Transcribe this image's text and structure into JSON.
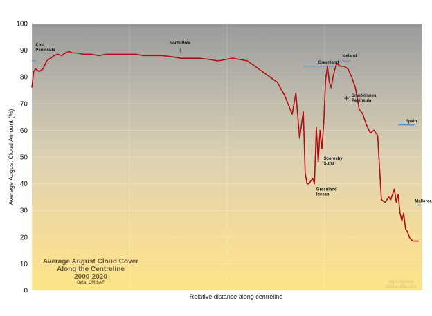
{
  "chart_data": {
    "type": "line",
    "ylabel": "Average August Cloud Amount (%)",
    "xlabel": "Relative distance along centreline",
    "ylim": [
      0,
      100
    ],
    "yticks": [
      0,
      10,
      20,
      30,
      40,
      50,
      60,
      70,
      80,
      90,
      100
    ],
    "xlim": [
      0,
      1.05
    ],
    "grid": true,
    "inset_title": [
      "Average August Cloud Cover",
      "Along the Centreline",
      "2000-2020"
    ],
    "inset_source": "Data: CM SAF",
    "credit": [
      "Jay Anderson",
      "eclipsophile.com"
    ],
    "line_color": "#b01010",
    "marker_color": "#5b9bd5",
    "series": [
      {
        "x": [
          0.0,
          0.005,
          0.01,
          0.02,
          0.03,
          0.04,
          0.05,
          0.06,
          0.07,
          0.08,
          0.09,
          0.1,
          0.11,
          0.12,
          0.14,
          0.16,
          0.18,
          0.2,
          0.22,
          0.25,
          0.28,
          0.3,
          0.32,
          0.35,
          0.38,
          0.4,
          0.42,
          0.45,
          0.48,
          0.5,
          0.52,
          0.54,
          0.56,
          0.58,
          0.6,
          0.62,
          0.64,
          0.66,
          0.68,
          0.7,
          0.71,
          0.72,
          0.73,
          0.735,
          0.74,
          0.745,
          0.75,
          0.755,
          0.76,
          0.765,
          0.77,
          0.775,
          0.78,
          0.785,
          0.79,
          0.795,
          0.8,
          0.805,
          0.81,
          0.815,
          0.82,
          0.83,
          0.84,
          0.85,
          0.86,
          0.87,
          0.88,
          0.89,
          0.9,
          0.91,
          0.92,
          0.93,
          0.94,
          0.95,
          0.96,
          0.965,
          0.97,
          0.975,
          0.98,
          0.985,
          0.99,
          0.995,
          1.0,
          1.005,
          1.01,
          1.015,
          1.02,
          1.025,
          1.03,
          1.035,
          1.04
        ],
        "y": [
          76,
          82,
          83,
          82,
          83,
          86,
          87,
          88,
          88.5,
          88,
          89,
          89.5,
          89,
          89,
          88.5,
          88.5,
          88,
          88.5,
          88.5,
          88.5,
          88.5,
          88,
          88,
          88,
          87.5,
          87,
          87,
          87,
          86.5,
          86,
          86.5,
          87,
          86.5,
          86,
          84,
          82,
          80,
          78,
          73,
          66,
          74,
          57,
          67,
          44,
          40,
          40,
          41,
          42,
          40,
          61,
          48,
          60,
          53,
          63,
          79,
          84,
          78,
          76,
          80,
          83,
          85,
          84,
          84,
          83,
          80,
          76,
          68,
          66,
          62,
          59,
          60,
          58,
          34,
          33,
          35,
          34,
          36,
          38,
          33,
          36,
          29,
          26,
          29,
          23,
          22,
          20,
          19,
          18.5,
          18.5,
          18.5,
          18.5
        ]
      }
    ],
    "annotations": [
      {
        "lines": [
          "Kola",
          "Peninsula"
        ],
        "x": 0.01,
        "y": 91.5
      },
      {
        "lines": [
          "North Pole"
        ],
        "x": 0.37,
        "y": 92.2
      },
      {
        "lines": [
          "Greenland"
        ],
        "x": 0.77,
        "y": 85
      },
      {
        "lines": [
          "Iceland"
        ],
        "x": 0.835,
        "y": 87.5
      },
      {
        "lines": [
          "Snæfellsnes",
          "Peninsula"
        ],
        "x": 0.86,
        "y": 72.5
      },
      {
        "lines": [
          "Spain"
        ],
        "x": 1.005,
        "y": 63
      },
      {
        "lines": [
          "Scoresby",
          "Sund"
        ],
        "x": 0.785,
        "y": 49
      },
      {
        "lines": [
          "Greenland",
          "Icecap"
        ],
        "x": 0.765,
        "y": 37.5
      },
      {
        "lines": [
          "Mallorca"
        ],
        "x": 1.03,
        "y": 33
      }
    ],
    "markers": [
      {
        "type": "bar",
        "x0": 0.0,
        "x1": 0.012,
        "y": 86
      },
      {
        "type": "plus",
        "x": 0.4,
        "y": 90
      },
      {
        "type": "bar",
        "x0": 0.73,
        "x1": 0.83,
        "y": 84
      },
      {
        "type": "bar",
        "x0": 0.835,
        "x1": 0.855,
        "y": 86
      },
      {
        "type": "plus",
        "x": 0.846,
        "y": 72
      },
      {
        "type": "bar",
        "x0": 0.985,
        "x1": 1.03,
        "y": 62
      },
      {
        "type": "bar",
        "x0": 1.036,
        "x1": 1.046,
        "y": 32
      }
    ]
  }
}
